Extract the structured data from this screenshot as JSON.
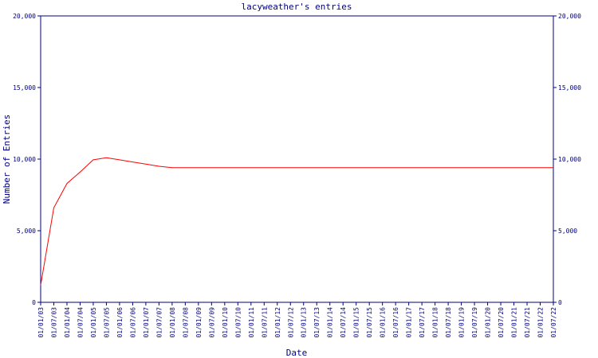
{
  "chart_data": {
    "type": "line",
    "title": "lacyweather's entries",
    "x_label": "Date",
    "y_label": "Number of Entries",
    "categories": [
      "01/01/03",
      "01/07/03",
      "01/01/04",
      "01/07/04",
      "01/01/05",
      "01/07/05",
      "01/01/06",
      "01/07/06",
      "01/01/07",
      "01/07/07",
      "01/01/08",
      "01/07/08",
      "01/01/09",
      "01/07/09",
      "01/01/10",
      "01/07/10",
      "01/01/11",
      "01/07/11",
      "01/01/12",
      "01/07/12",
      "01/01/13",
      "01/07/13",
      "01/01/14",
      "01/07/14",
      "01/01/15",
      "01/07/15",
      "01/01/16",
      "01/07/16",
      "01/01/17",
      "01/07/17",
      "01/01/18",
      "01/07/18",
      "01/01/19",
      "01/07/19",
      "01/01/20",
      "01/07/20",
      "01/01/21",
      "01/07/21",
      "01/01/22",
      "01/07/22"
    ],
    "series": [
      {
        "name": "Entries",
        "color": "#ff0000",
        "values": [
          1200,
          6600,
          8300,
          9100,
          9950,
          10100,
          9950,
          9800,
          9650,
          9500,
          9400,
          9400,
          9400,
          9400,
          9400,
          9400,
          9400,
          9400,
          9400,
          9400,
          9400,
          9400,
          9400,
          9400,
          9400,
          9400,
          9400,
          9400,
          9400,
          9400,
          9400,
          9400,
          9400,
          9400,
          9400,
          9400,
          9400,
          9400,
          9400,
          9400
        ]
      }
    ],
    "ylim": [
      0,
      20000
    ],
    "yticks": [
      0,
      {
        "value": 5000,
        "label": "5,000"
      },
      {
        "value": 10000,
        "label": "10,000"
      },
      {
        "value": 15000,
        "label": "15,000"
      },
      {
        "value": 20000,
        "label": "20,000"
      }
    ],
    "y2lim": [
      0,
      20000
    ],
    "y2ticks": [
      0,
      {
        "value": 5000,
        "label": "5,000"
      },
      {
        "value": 10000,
        "label": "10,000"
      },
      {
        "value": 15000,
        "label": "15,000"
      },
      {
        "value": 20000,
        "label": "20,000"
      }
    ],
    "axis_color": "#000080"
  }
}
